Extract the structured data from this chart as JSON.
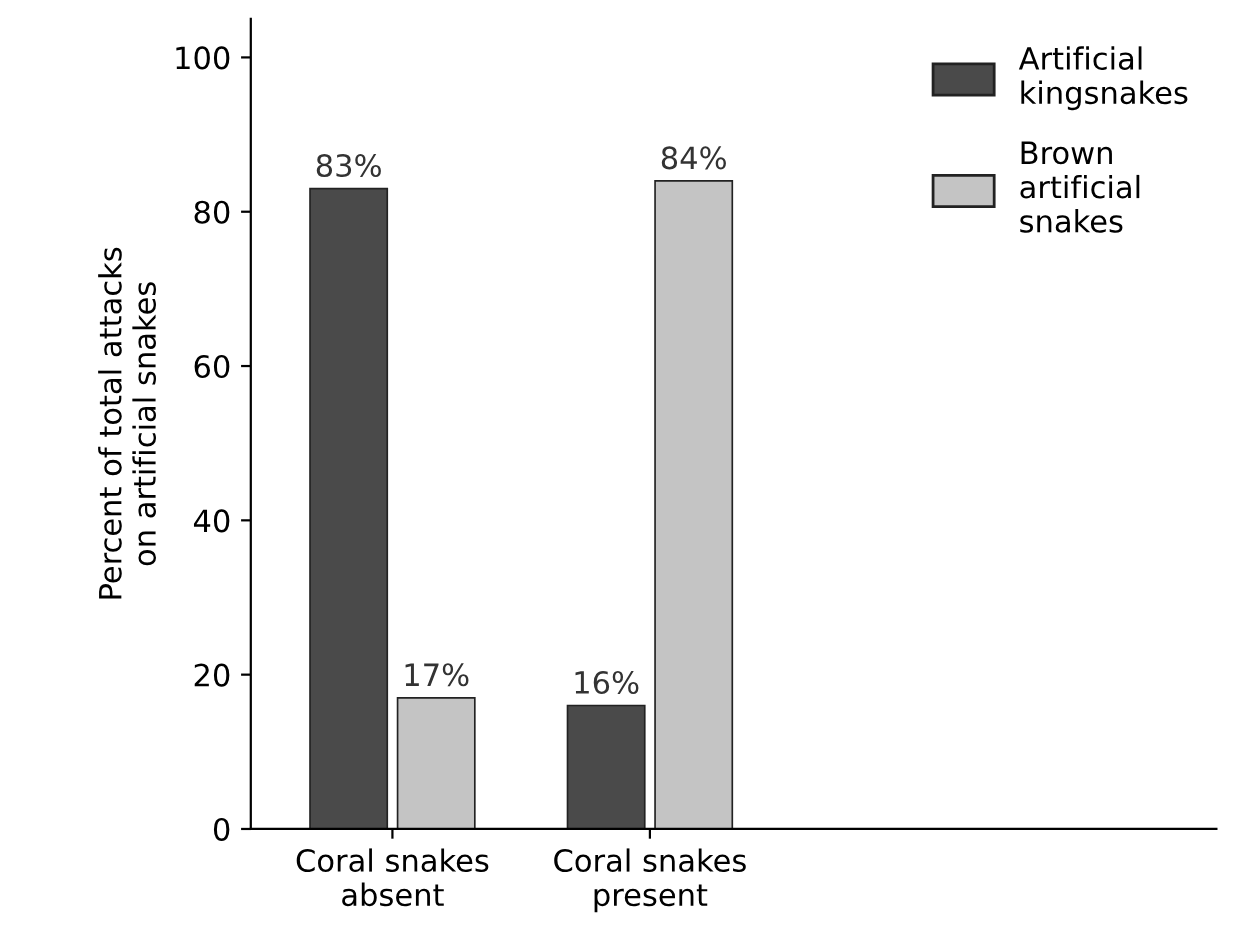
{
  "chart_data": {
    "type": "bar",
    "ylabel": "Percent of total attacks\non artificial snakes",
    "categories": [
      "Coral snakes\nabsent",
      "Coral snakes\npresent"
    ],
    "series": [
      {
        "name": "Artificial\nkingsnakes",
        "color": "#4a4a4a",
        "values": [
          83,
          16
        ],
        "value_labels": [
          "83%",
          "16%"
        ]
      },
      {
        "name": "Brown\nartificial\nsnakes",
        "color": "#c4c4c4",
        "values": [
          17,
          84
        ],
        "value_labels": [
          "17%",
          "84%"
        ]
      }
    ],
    "ylim": [
      0,
      105
    ],
    "yticks": [
      0,
      20,
      40,
      60,
      80,
      100
    ],
    "grid": false,
    "legend": "top right"
  }
}
